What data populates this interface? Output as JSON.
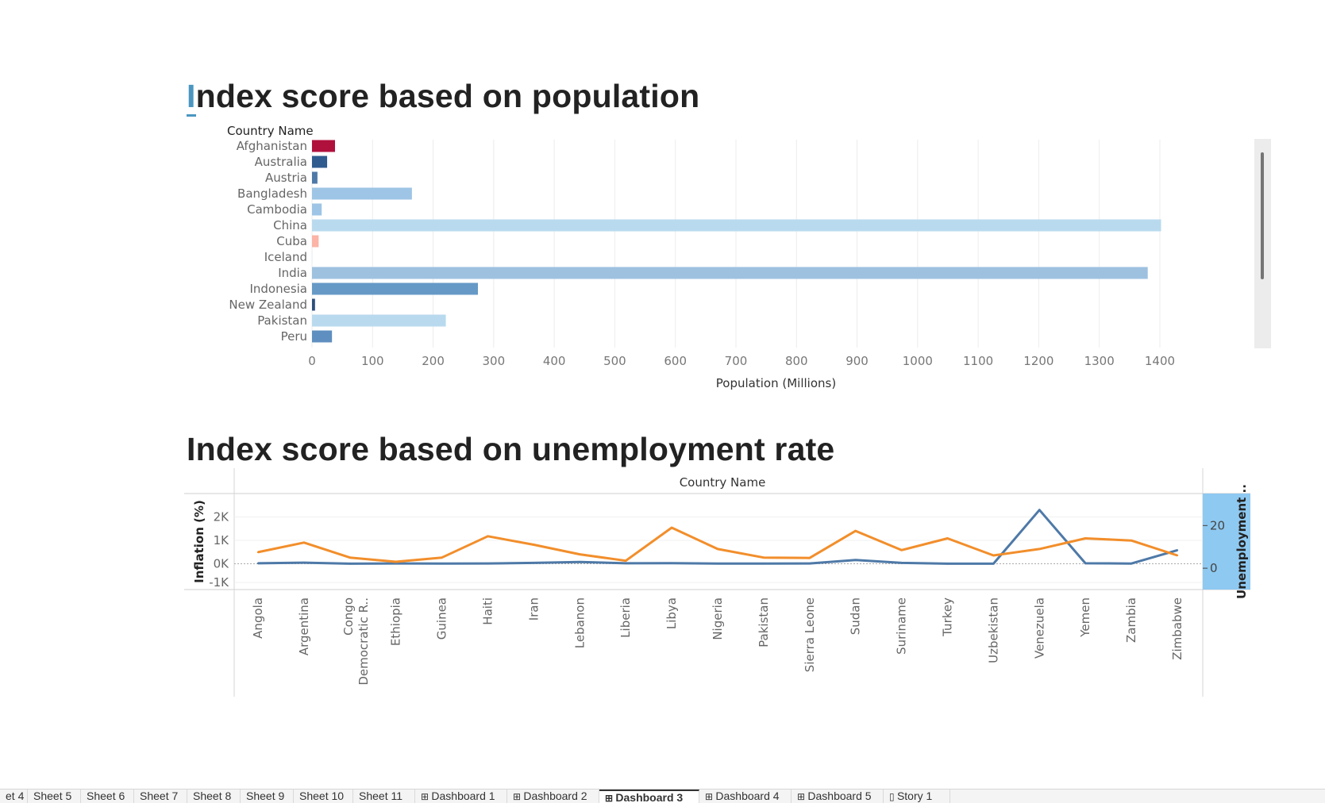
{
  "titles": {
    "population_prefix": "I",
    "population_rest": "ndex score based on population",
    "unemployment": "Index score based on unemployment rate"
  },
  "colors": {
    "orange": "#f28e2b",
    "blue": "#4e79a7",
    "crimson": "#b0103c",
    "axis_band": "#8ec9f1"
  },
  "tabs": [
    {
      "label": "et 4",
      "icon": "",
      "active": false
    },
    {
      "label": "Sheet 5",
      "icon": "",
      "active": false
    },
    {
      "label": "Sheet 6",
      "icon": "",
      "active": false
    },
    {
      "label": "Sheet 7",
      "icon": "",
      "active": false
    },
    {
      "label": "Sheet 8",
      "icon": "",
      "active": false
    },
    {
      "label": "Sheet 9",
      "icon": "",
      "active": false
    },
    {
      "label": "Sheet 10",
      "icon": "",
      "active": false
    },
    {
      "label": "Sheet 11",
      "icon": "",
      "active": false
    },
    {
      "label": "Dashboard 1",
      "icon": "dashboard-icon",
      "active": false
    },
    {
      "label": "Dashboard 2",
      "icon": "dashboard-icon",
      "active": false
    },
    {
      "label": "Dashboard 3",
      "icon": "dashboard-icon",
      "active": true
    },
    {
      "label": "Dashboard 4",
      "icon": "dashboard-icon",
      "active": false
    },
    {
      "label": "Dashboard 5",
      "icon": "dashboard-icon",
      "active": false
    },
    {
      "label": "Story 1",
      "icon": "story-icon",
      "active": false
    }
  ],
  "chart_data": [
    {
      "type": "bar",
      "orientation": "horizontal",
      "title": "Index score based on population",
      "row_header": "Country Name",
      "xlabel": "Population (Millions)",
      "xlim": [
        0,
        1480
      ],
      "xticks": [
        0,
        100,
        200,
        300,
        400,
        500,
        600,
        700,
        800,
        900,
        1000,
        1100,
        1200,
        1300,
        1400
      ],
      "grid": true,
      "categories": [
        "Afghanistan",
        "Australia",
        "Austria",
        "Bangladesh",
        "Cambodia",
        "China",
        "Cuba",
        "Iceland",
        "India",
        "Indonesia",
        "New Zealand",
        "Pakistan",
        "Peru"
      ],
      "values": [
        38,
        25,
        9,
        165,
        16,
        1402,
        11,
        0.4,
        1380,
        274,
        5,
        221,
        33
      ],
      "bar_colors": [
        "#b0103c",
        "#2f5b8f",
        "#4e79a7",
        "#9ec5e5",
        "#9ec5e5",
        "#b9daee",
        "#fbb4a6",
        "#d9e9f5",
        "#9ec1e0",
        "#6699c6",
        "#2d4f7c",
        "#b9daee",
        "#5f8fc0"
      ]
    },
    {
      "type": "line",
      "title": "Index score based on unemployment rate",
      "column_header": "Country Name",
      "x": [
        "Angola",
        "Argentina",
        "Congo, Democratic R..",
        "Ethiopia",
        "Guinea",
        "Haiti",
        "Iran",
        "Lebanon",
        "Liberia",
        "Libya",
        "Nigeria",
        "Pakistan",
        "Sierra Leone",
        "Sudan",
        "Suriname",
        "Turkey",
        "Uzbekistan",
        "Venezuela",
        "Yemen",
        "Zambia",
        "Zimbabwe"
      ],
      "x_tick_labels": [
        [
          "Angola"
        ],
        [
          "Argentina"
        ],
        [
          "Congo",
          "Democratic R.."
        ],
        [
          "Ethiopia"
        ],
        [
          "Guinea"
        ],
        [
          "Haiti"
        ],
        [
          "Iran"
        ],
        [
          "Lebanon"
        ],
        [
          "Liberia"
        ],
        [
          "Libya"
        ],
        [
          "Nigeria"
        ],
        [
          "Pakistan"
        ],
        [
          "Sierra Leone"
        ],
        [
          "Sudan"
        ],
        [
          "Suriname"
        ],
        [
          "Turkey"
        ],
        [
          "Uzbekistan"
        ],
        [
          "Venezuela"
        ],
        [
          "Yemen"
        ],
        [
          "Zambia"
        ],
        [
          "Zimbabwe"
        ]
      ],
      "ylabel_left": "Inflation (%)",
      "ylim_left": [
        -1100,
        3000
      ],
      "yticks_left": [
        {
          "v": 2000,
          "label": "2K"
        },
        {
          "v": 1000,
          "label": "1K"
        },
        {
          "v": 0,
          "label": "0K"
        },
        {
          "v": -800,
          "label": "-1K"
        }
      ],
      "ylabel_right": "Unemployment ..",
      "ylim_right": [
        -10,
        35
      ],
      "yticks_right": [
        {
          "v": 20,
          "label": "20"
        },
        {
          "v": 0,
          "label": "0"
        }
      ],
      "series": [
        {
          "axis": "left",
          "color": "#4e79a7",
          "values": [
            20,
            50,
            5,
            15,
            10,
            15,
            40,
            80,
            20,
            25,
            10,
            10,
            15,
            160,
            40,
            5,
            5,
            2300,
            20,
            10,
            580
          ]
        },
        {
          "axis": "right",
          "color": "#f28e2b",
          "values": [
            7.5,
            12,
            5,
            3,
            5,
            15,
            11,
            6.5,
            3.5,
            19,
            9,
            5,
            4.8,
            17.5,
            8.5,
            14,
            6,
            9,
            14,
            13,
            6
          ]
        }
      ]
    }
  ]
}
